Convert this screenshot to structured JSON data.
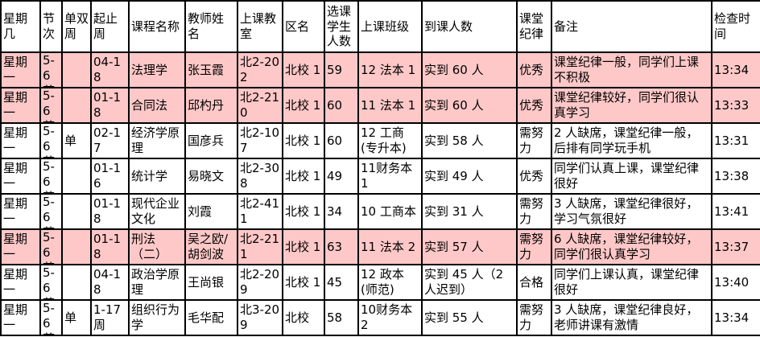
{
  "colors": {
    "row_highlight": "#ffc8c8",
    "row_default": "#ffffff",
    "grid_line": "#000000",
    "text": "#000000"
  },
  "table": {
    "columns": [
      {
        "key": "day",
        "label": "星期几"
      },
      {
        "key": "period",
        "label": "节次"
      },
      {
        "key": "odd_even",
        "label": "单双周"
      },
      {
        "key": "weeks",
        "label": "起止周"
      },
      {
        "key": "course",
        "label": "课程名称"
      },
      {
        "key": "teacher",
        "label": "教师姓名"
      },
      {
        "key": "room",
        "label": "上课教室"
      },
      {
        "key": "district",
        "label": "区名"
      },
      {
        "key": "enrolled",
        "label": "选课学生人数"
      },
      {
        "key": "class",
        "label": "上课班级"
      },
      {
        "key": "attendance",
        "label": "到课人数"
      },
      {
        "key": "discipline",
        "label": "课堂纪律"
      },
      {
        "key": "notes",
        "label": "备注"
      },
      {
        "key": "check_time",
        "label": "检查时间"
      }
    ],
    "rows": [
      {
        "highlighted": true,
        "cells": {
          "day": "星期一",
          "period": "5-6 节",
          "odd_even": "",
          "weeks": "04-18",
          "course": "法理学",
          "teacher": "张玉霞",
          "room": "北2-202",
          "district": "北校 1",
          "enrolled": "59",
          "class": "12 法本 1",
          "attendance": "实到 60 人",
          "discipline": "优秀",
          "notes": "课堂纪律一般，同学们上课不积极",
          "check_time": "13:34"
        }
      },
      {
        "highlighted": true,
        "cells": {
          "day": "星期一",
          "period": "5-6 节",
          "odd_even": "",
          "weeks": "01-18",
          "course": "合同法",
          "teacher": "邱杓丹",
          "room": "北2-210",
          "district": "北校 1",
          "enrolled": "60",
          "class": "11 法本 1",
          "attendance": "实到 60 人",
          "discipline": "优秀",
          "notes": "课堂纪律较好，同学们很认真学习",
          "check_time": "13:33"
        }
      },
      {
        "highlighted": false,
        "cells": {
          "day": "星期一",
          "period": "5-6 节",
          "odd_even": "单",
          "weeks": "02-17",
          "course": "经济学原理",
          "teacher": "国彦兵",
          "room": "北2-107",
          "district": "北校 1",
          "enrolled": "60",
          "class": "12 工商(专升本)",
          "attendance": "实到 58 人",
          "discipline": "需努力",
          "notes": "2 人缺席，课堂纪律一般，后排有同学玩手机",
          "check_time": "13:31"
        }
      },
      {
        "highlighted": false,
        "cells": {
          "day": "星期一",
          "period": "5-6 节",
          "odd_even": "",
          "weeks": "01-16",
          "course": "统计学",
          "teacher": "易晓文",
          "room": "北2-308",
          "district": "北校 1",
          "enrolled": "49",
          "class": "11财务本1",
          "attendance": "实到 49 人",
          "discipline": "优秀",
          "notes": "同学们认真上课，课堂纪律很好",
          "check_time": "13:38"
        }
      },
      {
        "highlighted": false,
        "cells": {
          "day": "星期一",
          "period": "5-6 节",
          "odd_even": "",
          "weeks": "01-18",
          "course": "现代企业文化",
          "teacher": "刘霞",
          "room": "北2-411",
          "district": "北校 1",
          "enrolled": "34",
          "class": "10 工商本",
          "attendance": "实到 31 人",
          "discipline": "需努力",
          "notes": "3 人缺席，课堂纪律很好，学习气氛很好",
          "check_time": "13:41"
        }
      },
      {
        "highlighted": true,
        "cells": {
          "day": "星期一",
          "period": "5-6 节",
          "odd_even": "",
          "weeks": "01-18",
          "course": "刑法（二）",
          "teacher": "吴之欧/胡剑波",
          "room": "北2-211",
          "district": "北校 1",
          "enrolled": "63",
          "class": "11 法本 2",
          "attendance": "实到 57 人",
          "discipline": "需努力",
          "notes": "6 人缺席，课堂纪律较好，同学们很认真学习",
          "check_time": "13:37"
        }
      },
      {
        "highlighted": false,
        "cells": {
          "day": "星期一",
          "period": "5-6 节",
          "odd_even": "",
          "weeks": "04-18",
          "course": "政治学原理",
          "teacher": "王尚银",
          "room": "北2-209",
          "district": "北校 1",
          "enrolled": "45",
          "class": "12 政本(师范)",
          "attendance": "实到 45 人（2 人迟到）",
          "discipline": "合格",
          "notes": "同学们上课认真，课堂纪律很好",
          "check_time": "13:40"
        }
      },
      {
        "highlighted": false,
        "cells": {
          "day": "星期一",
          "period": "5-6 节",
          "odd_even": "单",
          "weeks": "1-17周",
          "course": "组织行为学",
          "teacher": "毛华配",
          "room": "北3-209",
          "district": "北校",
          "enrolled": "58",
          "class": "10财务本2",
          "attendance": "实到 55 人",
          "discipline": "需努力",
          "notes": "3 人缺席，课堂纪律良好，老师讲课有激情",
          "check_time": "13:34"
        }
      }
    ]
  }
}
